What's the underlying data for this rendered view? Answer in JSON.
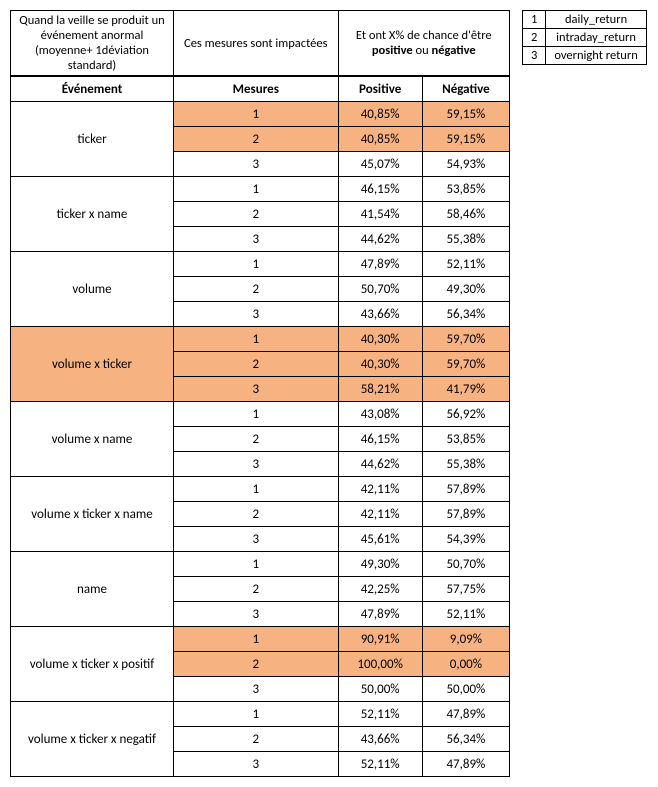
{
  "highlight_color": "#f6b280",
  "header": {
    "c1": "Quand la veille se produit un événement anormal (moyenne+ 1déviation standard)",
    "c2": "Ces mesures sont impactées",
    "c3": "Et ont X% de chance d'être <b>positive</b> ou <b>négative</b>"
  },
  "cols": {
    "event": "Événement",
    "measure": "Mesures",
    "pos": "Positive",
    "neg": "Négative"
  },
  "legend": [
    {
      "n": "1",
      "label": "daily_return"
    },
    {
      "n": "2",
      "label": "intraday_return"
    },
    {
      "n": "3",
      "label": "overnight return"
    }
  ],
  "groups": [
    {
      "name": "ticker",
      "rows": [
        {
          "m": "1",
          "p": "40,85%",
          "n": "59,15%",
          "hl": true
        },
        {
          "m": "2",
          "p": "40,85%",
          "n": "59,15%",
          "hl": true
        },
        {
          "m": "3",
          "p": "45,07%",
          "n": "54,93%",
          "hl": false
        }
      ]
    },
    {
      "name": "ticker x name",
      "rows": [
        {
          "m": "1",
          "p": "46,15%",
          "n": "53,85%",
          "hl": false
        },
        {
          "m": "2",
          "p": "41,54%",
          "n": "58,46%",
          "hl": false
        },
        {
          "m": "3",
          "p": "44,62%",
          "n": "55,38%",
          "hl": false
        }
      ]
    },
    {
      "name": "volume",
      "rows": [
        {
          "m": "1",
          "p": "47,89%",
          "n": "52,11%",
          "hl": false
        },
        {
          "m": "2",
          "p": "50,70%",
          "n": "49,30%",
          "hl": false
        },
        {
          "m": "3",
          "p": "43,66%",
          "n": "56,34%",
          "hl": false
        }
      ]
    },
    {
      "name": "volume x ticker",
      "rows": [
        {
          "m": "1",
          "p": "40,30%",
          "n": "59,70%",
          "hl": true
        },
        {
          "m": "2",
          "p": "40,30%",
          "n": "59,70%",
          "hl": true
        },
        {
          "m": "3",
          "p": "58,21%",
          "n": "41,79%",
          "hl": true
        }
      ],
      "name_hl": true
    },
    {
      "name": "volume x name",
      "rows": [
        {
          "m": "1",
          "p": "43,08%",
          "n": "56,92%",
          "hl": false
        },
        {
          "m": "2",
          "p": "46,15%",
          "n": "53,85%",
          "hl": false
        },
        {
          "m": "3",
          "p": "44,62%",
          "n": "55,38%",
          "hl": false
        }
      ]
    },
    {
      "name": "volume x ticker x name",
      "rows": [
        {
          "m": "1",
          "p": "42,11%",
          "n": "57,89%",
          "hl": false
        },
        {
          "m": "2",
          "p": "42,11%",
          "n": "57,89%",
          "hl": false
        },
        {
          "m": "3",
          "p": "45,61%",
          "n": "54,39%",
          "hl": false
        }
      ]
    },
    {
      "name": "name",
      "rows": [
        {
          "m": "1",
          "p": "49,30%",
          "n": "50,70%",
          "hl": false
        },
        {
          "m": "2",
          "p": "42,25%",
          "n": "57,75%",
          "hl": false
        },
        {
          "m": "3",
          "p": "47,89%",
          "n": "52,11%",
          "hl": false
        }
      ]
    },
    {
      "name": "volume x ticker x positif",
      "rows": [
        {
          "m": "1",
          "p": "90,91%",
          "n": "9,09%",
          "hl": true
        },
        {
          "m": "2",
          "p": "100,00%",
          "n": "0,00%",
          "hl": true
        },
        {
          "m": "3",
          "p": "50,00%",
          "n": "50,00%",
          "hl": false
        }
      ]
    },
    {
      "name": "volume x ticker x negatif",
      "rows": [
        {
          "m": "1",
          "p": "52,11%",
          "n": "47,89%",
          "hl": false
        },
        {
          "m": "2",
          "p": "43,66%",
          "n": "56,34%",
          "hl": false
        },
        {
          "m": "3",
          "p": "52,11%",
          "n": "47,89%",
          "hl": false
        }
      ]
    }
  ]
}
